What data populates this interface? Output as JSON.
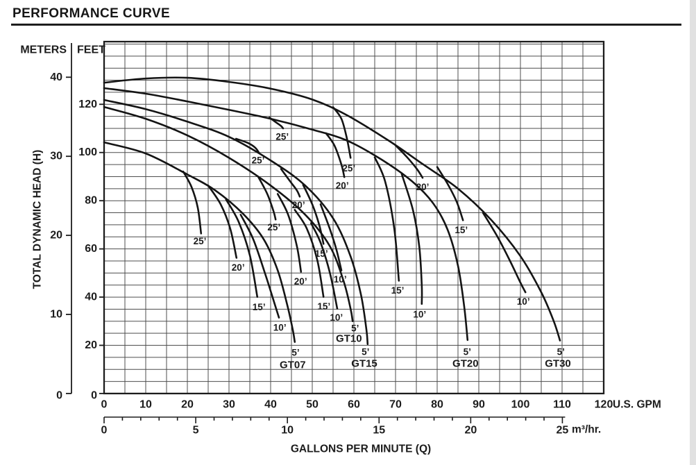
{
  "title": "PERFORMANCE CURVE",
  "axes": {
    "left_primary_label": "METERS",
    "left_secondary_label": "FEET",
    "y_axis_title": "TOTAL DYNAMIC HEAD (H)",
    "x_axis_title": "GALLONS PER MINUTE (Q)",
    "x_unit_label": "U.S. GPM",
    "x_metric_unit_label": "m³/hr.",
    "meters_ticks": [
      0,
      10,
      20,
      30,
      40
    ],
    "feet_ticks": [
      0,
      20,
      40,
      60,
      80,
      100,
      120
    ],
    "gpm_ticks": [
      0,
      10,
      20,
      30,
      40,
      50,
      60,
      70,
      80,
      90,
      100,
      110,
      120
    ],
    "m3hr_ticks": [
      0,
      5,
      10,
      15,
      20,
      25
    ]
  },
  "chart_data": {
    "type": "line",
    "title": "PERFORMANCE CURVE",
    "xlabel": "GALLONS PER MINUTE (Q)",
    "ylabel": "TOTAL DYNAMIC HEAD (H)",
    "x_unit": "U.S. GPM",
    "x_unit_secondary": "m³/hr.",
    "y_unit_primary": "FEET",
    "y_unit_secondary": "METERS",
    "xlim_gpm": [
      0,
      120
    ],
    "ylim_feet": [
      0,
      146
    ],
    "grid_step_gpm": 5,
    "grid_step_feet": 5,
    "gpm_per_m3hr": 4.40287,
    "feet_per_meter": 3.28084,
    "grid": "on",
    "ink_color": "#1c1c1c",
    "grid_color": "#4d4d4d",
    "series": [
      {
        "model": "GT07",
        "model_label": {
          "text": "GT07",
          "at": [
            45.3,
            11.8
          ]
        },
        "curves": [
          {
            "lift": "5’",
            "label": {
              "text": "5’",
              "at": [
                46.0,
                17.0
              ]
            },
            "points": [
              [
                0,
                104.2
              ],
              [
                10,
                99.6
              ],
              [
                20,
                90.9
              ],
              [
                26.7,
                84.3
              ],
              [
                33.3,
                74.7
              ],
              [
                38.3,
                64.1
              ],
              [
                41.7,
                51.1
              ],
              [
                44,
                36.7
              ],
              [
                45.3,
                26.6
              ],
              [
                45.8,
                21.4
              ]
            ]
          },
          {
            "lift": "10’",
            "label": {
              "text": "10’",
              "at": [
                42.2,
                27.4
              ]
            },
            "points": [
              [
                32.8,
                74.2
              ],
              [
                35.8,
                64.1
              ],
              [
                38.7,
                49.6
              ],
              [
                40.8,
                38.1
              ],
              [
                42,
                31.5
              ]
            ]
          },
          {
            "lift": "15’",
            "label": {
              "text": "15’",
              "at": [
                37.2,
                35.8
              ]
            },
            "points": [
              [
                29.3,
                80.5
              ],
              [
                32.3,
                71.3
              ],
              [
                35,
                57.4
              ],
              [
                36.8,
                40.1
              ]
            ]
          },
          {
            "lift": "20’",
            "label": {
              "text": "20’",
              "at": [
                32.2,
                52.2
              ]
            },
            "points": [
              [
                25,
                86.3
              ],
              [
                28,
                78.5
              ],
              [
                30.3,
                68.4
              ],
              [
                31.8,
                56.3
              ]
            ]
          },
          {
            "lift": "25’",
            "label": {
              "text": "25’",
              "at": [
                23.0,
                63.2
              ]
            },
            "points": [
              [
                19,
                92.1
              ],
              [
                21,
                85.7
              ],
              [
                22.5,
                77.1
              ],
              [
                23.3,
                66.4
              ]
            ]
          }
        ]
      },
      {
        "model": "GT10",
        "model_label": {
          "text": "GT10",
          "at": [
            58.8,
            22.8
          ]
        },
        "curves": [
          {
            "lift": "5’",
            "label": {
              "text": "5’",
              "at": [
                60.3,
                27.1
              ]
            },
            "points": [
              [
                0,
                118.9
              ],
              [
                10,
                114
              ],
              [
                20,
                107.1
              ],
              [
                30,
                97.8
              ],
              [
                40,
                86.3
              ],
              [
                48.3,
                74.2
              ],
              [
                54.2,
                61.2
              ],
              [
                57.5,
                46.8
              ],
              [
                59.2,
                35.2
              ],
              [
                59.7,
                30
              ]
            ]
          },
          {
            "lift": "10’",
            "label": {
              "text": "10’",
              "at": [
                55.8,
                31.5
              ]
            },
            "points": [
              [
                49.7,
                70.7
              ],
              [
                52,
                62.6
              ],
              [
                54.3,
                49.6
              ],
              [
                56,
                35.2
              ]
            ]
          },
          {
            "lift": "15’",
            "label": {
              "text": "15’",
              "at": [
                52.8,
                36.1
              ]
            },
            "points": [
              [
                45.8,
                76.2
              ],
              [
                48.7,
                68.4
              ],
              [
                51.2,
                55.4
              ],
              [
                52.7,
                40.1
              ]
            ]
          },
          {
            "lift": "20’",
            "label": {
              "text": "20’",
              "at": [
                47.2,
                46.5
              ]
            },
            "points": [
              [
                41.7,
                82.8
              ],
              [
                44.2,
                74.2
              ],
              [
                46.3,
                61.2
              ],
              [
                47.3,
                50.5
              ]
            ]
          },
          {
            "lift": "25’",
            "label": {
              "text": "25’",
              "at": [
                40.8,
                69.0
              ]
            },
            "points": [
              [
                37,
                90
              ],
              [
                39.2,
                82.8
              ],
              [
                40.7,
                75.6
              ],
              [
                41.2,
                72.2
              ]
            ]
          }
        ]
      },
      {
        "model": "GT15",
        "model_label": {
          "text": "GT15",
          "at": [
            62.5,
            12.4
          ]
        },
        "curves": [
          {
            "lift": "5’",
            "label": {
              "text": "5’",
              "at": [
                62.8,
                17.3
              ]
            },
            "points": [
              [
                0,
                121.8
              ],
              [
                10,
                118
              ],
              [
                20,
                112.8
              ],
              [
                30,
                106.5
              ],
              [
                40,
                96.7
              ],
              [
                48.3,
                86.3
              ],
              [
                55,
                72.7
              ],
              [
                59.2,
                56.9
              ],
              [
                61.7,
                41
              ],
              [
                63,
                26.6
              ],
              [
                63.3,
                20.5
              ]
            ]
          },
          {
            "lift": "10’",
            "label": {
              "text": "10’",
              "at": [
                56.7,
                47.3
              ]
            },
            "points": [
              [
                52,
                78.5
              ],
              [
                54.2,
                68.4
              ],
              [
                55.8,
                59.7
              ],
              [
                57,
                51.1
              ]
            ]
          },
          {
            "lift": "15’",
            "label": {
              "text": "15’",
              "at": [
                52.2,
                58.0
              ]
            },
            "points": [
              [
                47.8,
                86.6
              ],
              [
                50,
                78.5
              ],
              [
                51.7,
                69.8
              ],
              [
                52.7,
                62.1
              ]
            ]
          },
          {
            "lift": "20’",
            "label": {
              "text": "20’",
              "at": [
                46.7,
                78.2
              ]
            },
            "points": [
              [
                42.5,
                93.2
              ],
              [
                44.7,
                88
              ],
              [
                46.3,
                84.3
              ],
              [
                47,
                81.7
              ]
            ]
          },
          {
            "lift": "25’",
            "label": {
              "text": "25’",
              "at": [
                37.0,
                96.7
              ]
            },
            "points": [
              [
                31.7,
                105.7
              ],
              [
                34.5,
                104
              ],
              [
                36.3,
                102
              ],
              [
                37.2,
                99.9
              ]
            ]
          }
        ]
      },
      {
        "model": "GT20",
        "model_label": {
          "text": "GT20",
          "at": [
            86.8,
            12.4
          ]
        },
        "curves": [
          {
            "lift": "5’",
            "label": {
              "text": "5’",
              "at": [
                87.2,
                17.3
              ]
            },
            "points": [
              [
                0,
                126.7
              ],
              [
                10,
                124.4
              ],
              [
                20,
                121.2
              ],
              [
                30,
                117.7
              ],
              [
                40,
                114
              ],
              [
                50,
                109.5
              ],
              [
                58.3,
                105
              ],
              [
                66.7,
                97
              ],
              [
                74,
                88
              ],
              [
                79,
                79
              ],
              [
                82.5,
                68
              ],
              [
                85,
                53
              ],
              [
                86.5,
                36
              ],
              [
                87.3,
                22.2
              ]
            ]
          },
          {
            "lift": "10’",
            "label": {
              "text": "10’",
              "at": [
                75.8,
                32.9
              ]
            },
            "points": [
              [
                71.5,
                91
              ],
              [
                74.2,
                76
              ],
              [
                75.7,
                61
              ],
              [
                76.3,
                45
              ],
              [
                76.3,
                37.2
              ]
            ]
          },
          {
            "lift": "15’",
            "label": {
              "text": "15’",
              "at": [
                70.5,
                42.7
              ]
            },
            "points": [
              [
                65,
                98
              ],
              [
                67.5,
                88
              ],
              [
                69.7,
                68.4
              ],
              [
                70.8,
                46.8
              ]
            ]
          },
          {
            "lift": "20’",
            "label": {
              "text": "20’",
              "at": [
                57.2,
                86.3
              ]
            },
            "points": [
              [
                53.3,
                108
              ],
              [
                55.3,
                103
              ],
              [
                57,
                95
              ],
              [
                57.7,
                89.8
              ]
            ]
          },
          {
            "lift": "25’",
            "label": {
              "text": "25’",
              "at": [
                42.8,
                106.5
              ]
            },
            "points": [
              [
                39.7,
                114.5
              ],
              [
                41.3,
                112.5
              ],
              [
                42.5,
                111
              ],
              [
                43,
                110
              ]
            ]
          }
        ]
      },
      {
        "model": "GT30",
        "model_label": {
          "text": "GT30",
          "at": [
            109.0,
            12.4
          ]
        },
        "curves": [
          {
            "lift": "5’",
            "label": {
              "text": "5’",
              "at": [
                109.7,
                17.3
              ]
            },
            "points": [
              [
                0,
                129
              ],
              [
                10,
                130.7
              ],
              [
                20,
                131
              ],
              [
                30,
                129.3
              ],
              [
                40,
                126.5
              ],
              [
                50,
                122
              ],
              [
                58.3,
                115.5
              ],
              [
                68.3,
                105
              ],
              [
                76.7,
                95
              ],
              [
                85,
                85
              ],
              [
                93,
                72
              ],
              [
                100,
                57
              ],
              [
                105,
                42
              ],
              [
                108,
                30
              ],
              [
                109.5,
                22
              ]
            ]
          },
          {
            "lift": "10’",
            "label": {
              "text": "10’",
              "at": [
                100.7,
                38.1
              ]
            },
            "points": [
              [
                91,
                75
              ],
              [
                94.5,
                65
              ],
              [
                97.5,
                55
              ],
              [
                100,
                46
              ],
              [
                101.2,
                42
              ]
            ]
          },
          {
            "lift": "15’",
            "label": {
              "text": "15’",
              "at": [
                85.8,
                67.8
              ]
            },
            "points": [
              [
                80,
                94
              ],
              [
                82.5,
                87
              ],
              [
                84.7,
                79.5
              ],
              [
                86.2,
                71.9
              ]
            ]
          },
          {
            "lift": "20’",
            "label": {
              "text": "20’",
              "at": [
                76.5,
                85.7
              ]
            },
            "points": [
              [
                70,
                103
              ],
              [
                72.8,
                98
              ],
              [
                75.2,
                93
              ],
              [
                76.5,
                89.5
              ]
            ]
          },
          {
            "lift": "25’",
            "label": {
              "text": "25’",
              "at": [
                58.8,
                93.5
              ]
            },
            "points": [
              [
                55,
                118.8
              ],
              [
                57,
                114
              ],
              [
                58.3,
                106
              ],
              [
                59.2,
                97.8
              ]
            ]
          }
        ]
      }
    ]
  }
}
